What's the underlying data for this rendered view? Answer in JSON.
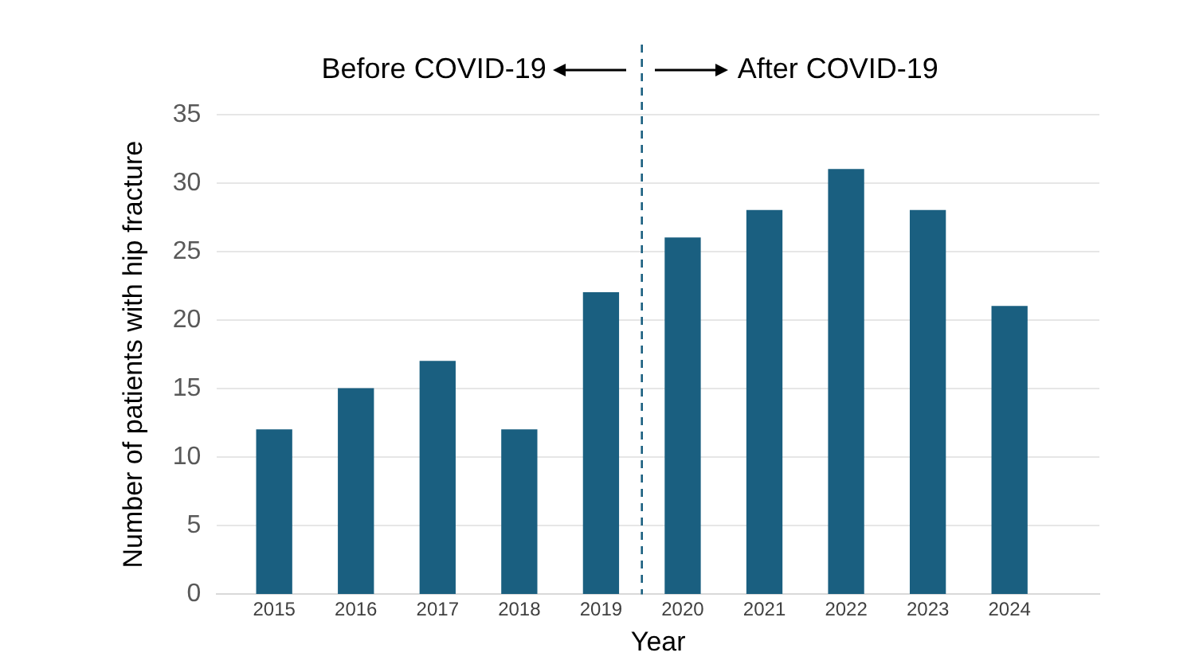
{
  "chart_data": {
    "type": "bar",
    "xlabel": "Year",
    "ylabel": "Number of patients with hip fracture",
    "x": [
      2015,
      2016,
      2017,
      2018,
      2019,
      2020,
      2021,
      2022,
      2023,
      2024
    ],
    "values": [
      12,
      15,
      17,
      12,
      22,
      26,
      28,
      31,
      28,
      21
    ],
    "color": "#1a5f80",
    "xlim": [
      2014.3,
      2025.1
    ],
    "xticks": [
      2015,
      2016,
      2017,
      2018,
      2019,
      2020,
      2021,
      2022,
      2023,
      2024
    ],
    "ylim": [
      0,
      35
    ],
    "yticks": [
      0,
      5,
      10,
      15,
      20,
      25,
      30,
      35
    ],
    "grid": "y",
    "legend": false,
    "ref_lines": [
      {
        "axis": "x",
        "value": 2019.5,
        "color": "#1a5f80",
        "line_style": "dashed"
      }
    ],
    "annotations": [
      "Before COVID-19",
      "After COVID-19"
    ]
  }
}
